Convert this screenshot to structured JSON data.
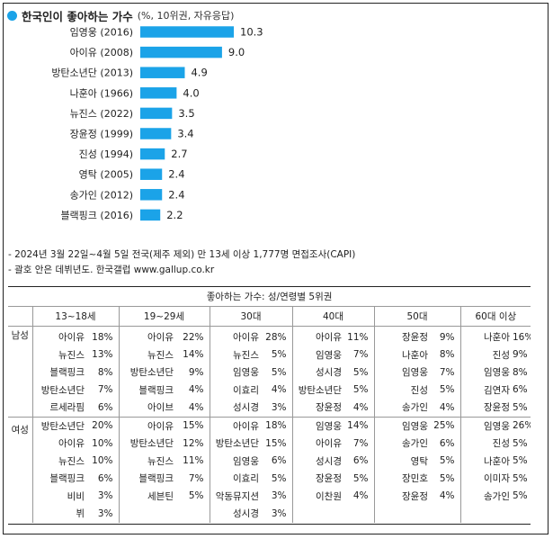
{
  "header": {
    "title": "한국인이 좋아하는 가수",
    "subtitle": "(%, 10위권, 자유응답)"
  },
  "colors": {
    "bar": "#1ba3e8",
    "dot": "#1ba3e8"
  },
  "chart_data": {
    "type": "bar",
    "orientation": "horizontal",
    "categories": [
      "임영웅 (2016)",
      "아이유 (2008)",
      "방탄소년단 (2013)",
      "나훈아 (1966)",
      "뉴진스 (2022)",
      "장윤정 (1999)",
      "진성 (1994)",
      "영탁 (2005)",
      "송가인 (2012)",
      "블랙핑크 (2016)"
    ],
    "values": [
      10.3,
      9.0,
      4.9,
      4.0,
      3.5,
      3.4,
      2.7,
      2.4,
      2.4,
      2.2
    ],
    "value_labels": [
      "10.3",
      "9.0",
      "4.9",
      "4.0",
      "3.5",
      "3.4",
      "2.7",
      "2.4",
      "2.4",
      "2.2"
    ],
    "xlim": [
      0,
      12
    ],
    "grid": false,
    "legend": "none"
  },
  "notes": [
    "- 2024년 3월 22일~4월 5일 전국(제주 제외) 만 13세 이상 1,777명 면접조사(CAPI)",
    "- 괄호 안은 데뷔년도. 한국갤럽 www.gallup.co.kr"
  ],
  "table": {
    "caption": "좋아하는 가수: 성/연령별 5위권",
    "age_headers": [
      "13~18세",
      "19~29세",
      "30대",
      "40대",
      "50대",
      "60대 이상"
    ],
    "groups": [
      {
        "label": "남성",
        "rows": [
          [
            [
              "아이유",
              "18%"
            ],
            [
              "아이유",
              "22%"
            ],
            [
              "아이유",
              "28%"
            ],
            [
              "아이유",
              "11%"
            ],
            [
              "장윤정",
              "9%"
            ],
            [
              "나훈아",
              "16%"
            ]
          ],
          [
            [
              "뉴진스",
              "13%"
            ],
            [
              "뉴진스",
              "14%"
            ],
            [
              "뉴진스",
              "5%"
            ],
            [
              "임영웅",
              "7%"
            ],
            [
              "나훈아",
              "8%"
            ],
            [
              "진성",
              "9%"
            ]
          ],
          [
            [
              "블랙핑크",
              "8%"
            ],
            [
              "방탄소년단",
              "9%"
            ],
            [
              "임영웅",
              "5%"
            ],
            [
              "성시경",
              "5%"
            ],
            [
              "임영웅",
              "7%"
            ],
            [
              "임영웅",
              "8%"
            ]
          ],
          [
            [
              "방탄소년단",
              "7%"
            ],
            [
              "블랙핑크",
              "4%"
            ],
            [
              "이효리",
              "4%"
            ],
            [
              "방탄소년단",
              "5%"
            ],
            [
              "진성",
              "5%"
            ],
            [
              "김연자",
              "6%"
            ]
          ],
          [
            [
              "르세라핌",
              "6%"
            ],
            [
              "아이브",
              "4%"
            ],
            [
              "성시경",
              "3%"
            ],
            [
              "장윤정",
              "4%"
            ],
            [
              "송가인",
              "4%"
            ],
            [
              "장윤정",
              "5%"
            ]
          ]
        ]
      },
      {
        "label": "여성",
        "rows": [
          [
            [
              "방탄소년단",
              "20%"
            ],
            [
              "아이유",
              "15%"
            ],
            [
              "아이유",
              "18%"
            ],
            [
              "임영웅",
              "14%"
            ],
            [
              "임영웅",
              "25%"
            ],
            [
              "임영웅",
              "26%"
            ]
          ],
          [
            [
              "아이유",
              "10%"
            ],
            [
              "방탄소년단",
              "12%"
            ],
            [
              "방탄소년단",
              "15%"
            ],
            [
              "아이유",
              "7%"
            ],
            [
              "송가인",
              "6%"
            ],
            [
              "진성",
              "5%"
            ]
          ],
          [
            [
              "뉴진스",
              "10%"
            ],
            [
              "뉴진스",
              "11%"
            ],
            [
              "임영웅",
              "6%"
            ],
            [
              "성시경",
              "6%"
            ],
            [
              "영탁",
              "5%"
            ],
            [
              "나훈아",
              "5%"
            ]
          ],
          [
            [
              "블랙핑크",
              "6%"
            ],
            [
              "블랙핑크",
              "7%"
            ],
            [
              "이효리",
              "5%"
            ],
            [
              "장윤정",
              "5%"
            ],
            [
              "장민호",
              "5%"
            ],
            [
              "이미자",
              "5%"
            ]
          ],
          [
            [
              "비비",
              "3%"
            ],
            [
              "세븐틴",
              "5%"
            ],
            [
              "악동뮤지션",
              "3%"
            ],
            [
              "이찬원",
              "4%"
            ],
            [
              "장윤정",
              "4%"
            ],
            [
              "송가인",
              "5%"
            ]
          ],
          [
            [
              "뷔",
              "3%"
            ],
            [
              "",
              ""
            ],
            [
              "성시경",
              "3%"
            ],
            [
              "",
              ""
            ],
            [
              "",
              ""
            ],
            [
              "",
              ""
            ]
          ]
        ]
      }
    ]
  }
}
